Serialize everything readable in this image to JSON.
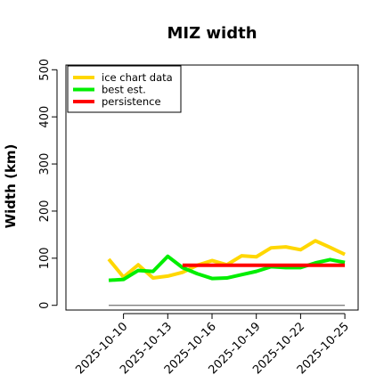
{
  "chart_data": {
    "type": "line",
    "title": "MIZ width",
    "xlabel": "",
    "ylabel": "Width (km)",
    "ylim": [
      -10,
      510
    ],
    "yticks": [
      0,
      100,
      200,
      300,
      400,
      500
    ],
    "xlim_day": [
      -2.9,
      16.9
    ],
    "xticks": [
      {
        "day": 1,
        "label": "2025-10-10"
      },
      {
        "day": 4,
        "label": "2025-10-13"
      },
      {
        "day": 7,
        "label": "2025-10-16"
      },
      {
        "day": 10,
        "label": "2025-10-19"
      },
      {
        "day": 13,
        "label": "2025-10-22"
      },
      {
        "day": 16,
        "label": "2025-10-25"
      }
    ],
    "legend_position": "top-left",
    "grid": false,
    "series": [
      {
        "name": "ice chart data",
        "color": "#FFD700",
        "x": [
          0,
          1,
          2,
          3,
          4,
          5,
          6,
          7,
          8,
          9,
          10,
          11,
          12,
          13,
          14,
          15,
          16
        ],
        "y": [
          98,
          60,
          86,
          58,
          62,
          70,
          85,
          95,
          86,
          105,
          103,
          122,
          124,
          118,
          137,
          123,
          108
        ]
      },
      {
        "name": "best est.",
        "color": "#00EE00",
        "x": [
          0,
          1,
          2,
          3,
          4,
          5,
          6,
          7,
          8,
          9,
          10,
          11,
          12,
          13,
          14,
          15,
          16
        ],
        "y": [
          53,
          55,
          74,
          72,
          104,
          80,
          67,
          57,
          58,
          65,
          72,
          82,
          80,
          80,
          90,
          97,
          91
        ]
      },
      {
        "name": "persistence",
        "color": "#FF0000",
        "x": [
          5,
          16
        ],
        "y": [
          85,
          85
        ]
      }
    ],
    "baseline": {
      "y": 0,
      "x": [
        0,
        16
      ],
      "color": "#808080"
    }
  }
}
